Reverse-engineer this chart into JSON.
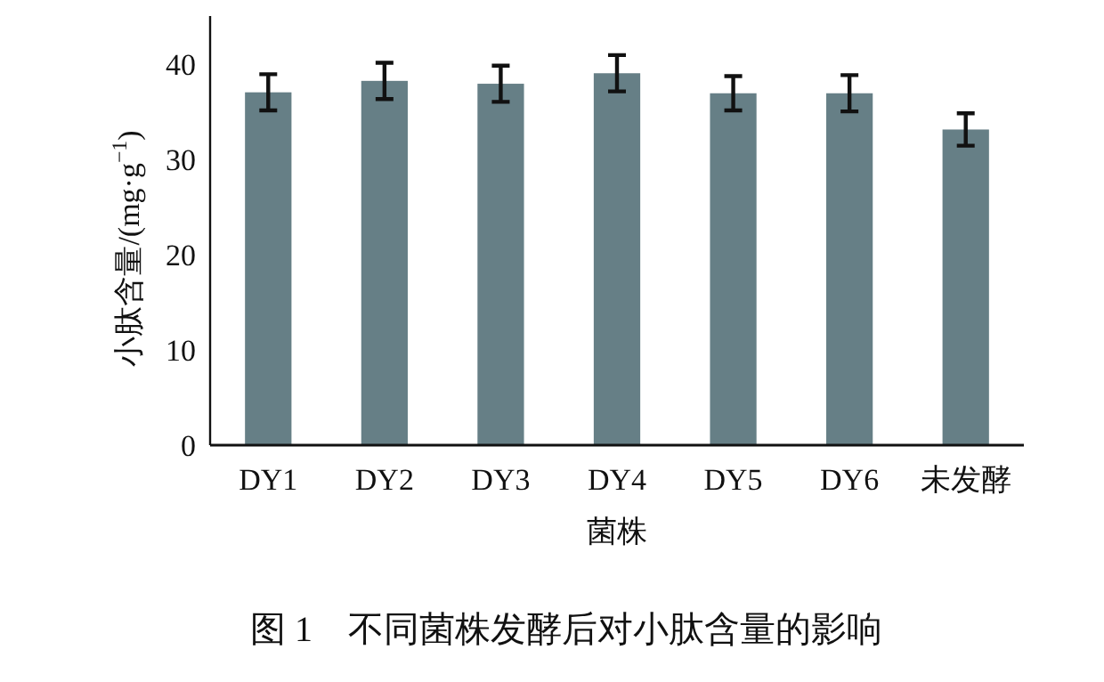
{
  "chart_data": {
    "type": "bar",
    "xlabel": "菌株",
    "ylabel": "小肽含量/(mg·g$^{−1}$)",
    "categories": [
      "DY1",
      "DY2",
      "DY3",
      "DY4",
      "DY5",
      "DY6",
      "未发酵"
    ],
    "values": [
      37.0,
      38.2,
      37.9,
      39.0,
      36.9,
      36.9,
      33.1
    ],
    "errors": [
      1.9,
      1.9,
      1.9,
      1.9,
      1.8,
      1.9,
      1.7
    ],
    "color": "#667f86",
    "ylim": [
      0,
      45
    ],
    "yticks": [
      0,
      10,
      20,
      30,
      40
    ],
    "annotations": [
      "图 1　不同菌株发酵后对小肽含量的影响"
    ]
  }
}
